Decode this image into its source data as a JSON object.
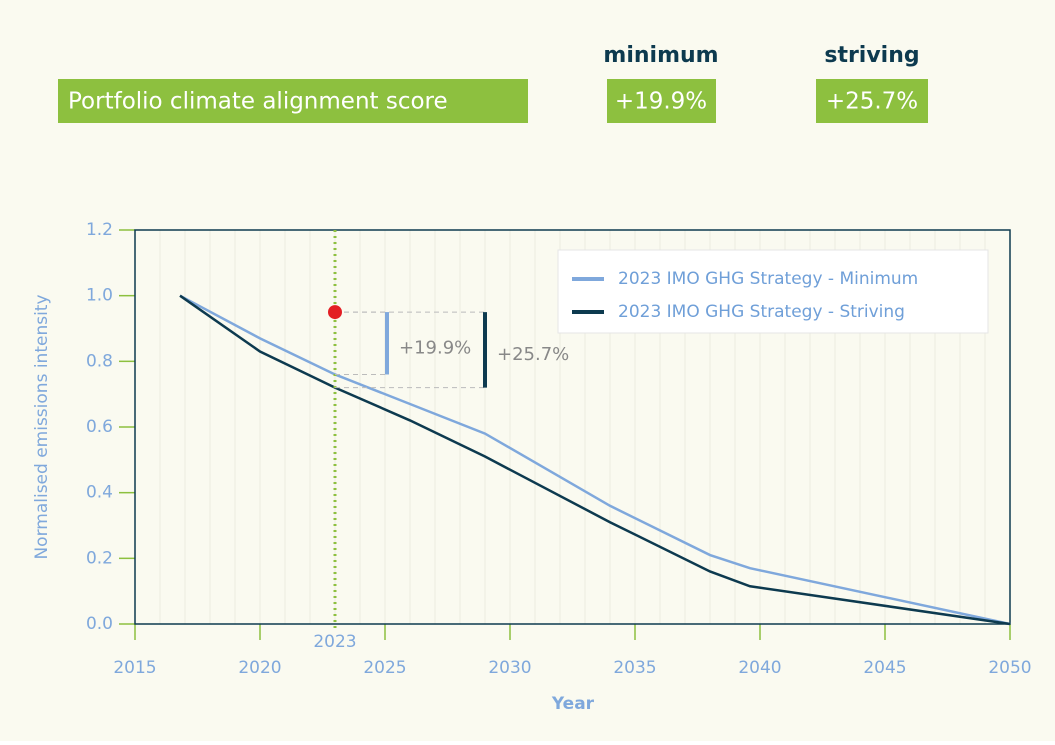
{
  "header": {
    "title": "Portfolio climate alignment score",
    "minimum_label": "minimum",
    "striving_label": "striving",
    "minimum_value": "+19.9%",
    "striving_value": "+25.7%"
  },
  "chart_data": {
    "type": "line",
    "x_label": "Year",
    "y_label": "Normalised emissions intensity",
    "xlim": [
      2015,
      2050
    ],
    "xticks": [
      2015,
      2020,
      2025,
      2030,
      2035,
      2040,
      2045,
      2050
    ],
    "ylim": [
      0,
      1.2
    ],
    "yticks": [
      {
        "value": 0,
        "label": "0.0"
      },
      0.2,
      0.4,
      0.6,
      0.8,
      {
        "value": 1,
        "label": "1.0"
      },
      1.2
    ],
    "grid": true,
    "legend": "upper right",
    "series": [
      {
        "name": "2023 IMO GHG Strategy - Minimum",
        "color": "#7fa8dc",
        "x": [
          2016.8,
          2020,
          2023,
          2026,
          2029,
          2034,
          2038,
          2039.6,
          2050
        ],
        "values": [
          1.0,
          0.87,
          0.76,
          0.67,
          0.58,
          0.36,
          0.21,
          0.17,
          0.0
        ]
      },
      {
        "name": "2023 IMO GHG Strategy - Striving",
        "color": "#0d3a4f",
        "x": [
          2016.8,
          2020,
          2023,
          2026,
          2029,
          2034,
          2038,
          2039.6,
          2050
        ],
        "values": [
          1.0,
          0.83,
          0.72,
          0.62,
          0.51,
          0.31,
          0.16,
          0.115,
          0.0
        ]
      }
    ],
    "reference_line": {
      "x": 2023,
      "label": "2023",
      "color": "#8dc03f"
    },
    "marker": {
      "x": 2023,
      "y": 0.95,
      "color": "#e31e24"
    },
    "annotations": [
      {
        "text": "+19.9%",
        "y_from": 0.95,
        "y_to": 0.76,
        "color": "#7fa8dc"
      },
      {
        "text": "+25.7%",
        "y_from": 0.95,
        "y_to": 0.72,
        "color": "#0d3a4f"
      }
    ]
  }
}
